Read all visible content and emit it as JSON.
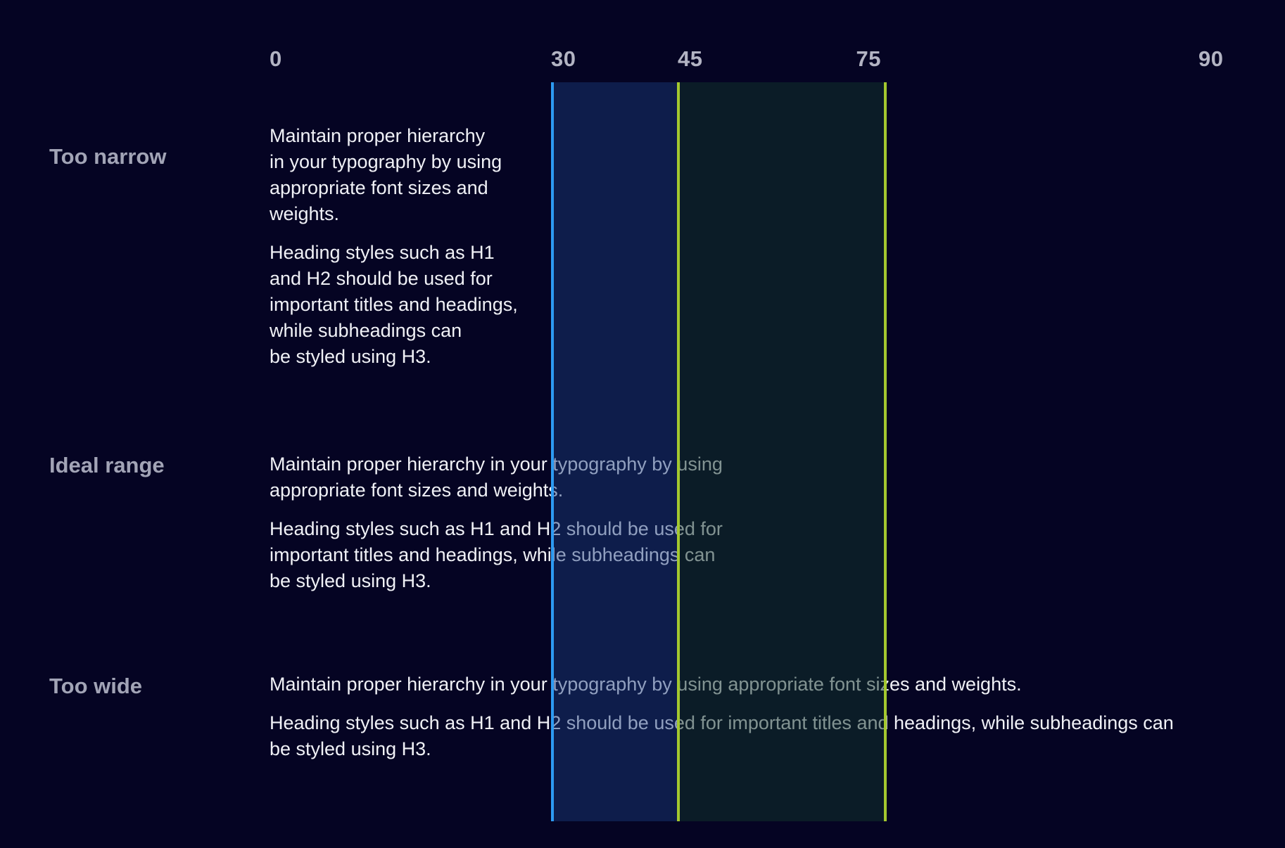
{
  "ruler": {
    "ticks": [
      "0",
      "30",
      "45",
      "75",
      "90"
    ]
  },
  "bands": {
    "narrow_to_ideal": {
      "name": "ideal-range-start-band",
      "from_tick": "30",
      "to_tick": "45",
      "line_color": "#2d9bf2",
      "fill": "rgba(27,60,125,0.45)"
    },
    "ideal_to_wide": {
      "name": "ideal-range-end-band",
      "from_tick": "45",
      "to_tick": "75",
      "line_color": "#a4c82f",
      "fill": "rgba(18,52,43,0.5)"
    }
  },
  "colors": {
    "background": "#050423",
    "body_text": "#f0f1f6",
    "row_label_text": "#a2a4b6",
    "ruler_text": "#b3b4c3",
    "accent_blue": "#2d9bf2",
    "accent_green": "#a4c82f"
  },
  "rows": [
    {
      "label": "Too narrow",
      "paragraphs": [
        [
          "Maintain proper hierarchy",
          "in your typography by using",
          "appropriate font sizes and",
          "weights."
        ],
        [
          "Heading styles such as H1",
          "and H2 should be used for",
          "important titles and headings,",
          "while subheadings can",
          "be styled using H3."
        ]
      ]
    },
    {
      "label": "Ideal range",
      "paragraphs": [
        [
          "Maintain proper hierarchy in your typography by using",
          "appropriate font sizes and weights."
        ],
        [
          "Heading styles such as H1 and H2 should be used for",
          "important titles and headings, while subheadings can",
          "be styled using H3."
        ]
      ]
    },
    {
      "label": "Too wide",
      "paragraphs": [
        [
          "Maintain proper hierarchy in your typography by using appropriate font sizes and weights."
        ],
        [
          "Heading styles such as H1 and H2 should be used for important titles and headings, while subheadings can",
          "be styled using H3."
        ]
      ]
    }
  ]
}
